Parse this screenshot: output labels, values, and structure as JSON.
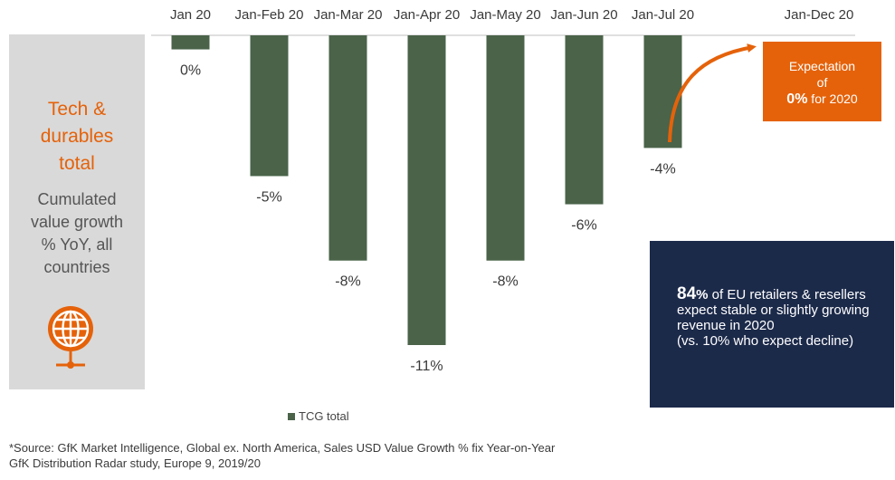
{
  "side_panel": {
    "title_lines": [
      "Tech &",
      "durables",
      "total"
    ],
    "subtitle_lines": [
      "Cumulated",
      "value growth",
      "% YoY, all",
      "countries"
    ],
    "icon": "globe-icon",
    "accent_color": "#e5620a"
  },
  "chart_data": {
    "type": "bar",
    "categories": [
      "Jan 20",
      "Jan-Feb 20",
      "Jan-Mar 20",
      "Jan-Apr 20",
      "Jan-May 20",
      "Jan-Jun 20",
      "Jan-Jul 20",
      "Jan-Dec 20"
    ],
    "series": [
      {
        "name": "TCG total",
        "values": [
          -0.5,
          -5,
          -8,
          -11,
          -8,
          -6,
          -4,
          null
        ],
        "labels": [
          "0%",
          "-5%",
          "-8%",
          "-11%",
          "-8%",
          "-6%",
          "-4%",
          ""
        ],
        "color": "#4a6349"
      }
    ],
    "ylim": [
      -11,
      0
    ],
    "grid": false,
    "legend_position": "bottom"
  },
  "expectation": {
    "line1": "Expectation",
    "line2": "of",
    "pct": "0%",
    "suffix": " for 2020",
    "color": "#e5620a"
  },
  "info_box": {
    "big": "84",
    "big_unit": "%",
    "text": " of EU retailers & resellers expect stable or slightly growing revenue in 2020",
    "note": "(vs. 10% who expect decline)",
    "color": "#1c2a4a"
  },
  "legend": {
    "label": "TCG total"
  },
  "footnote": {
    "line1": "*Source: GfK Market Intelligence, Global ex. North America, Sales USD Value Growth % fix Year-on-Year",
    "line2": "GfK Distribution Radar study, Europe 9, 2019/20"
  }
}
